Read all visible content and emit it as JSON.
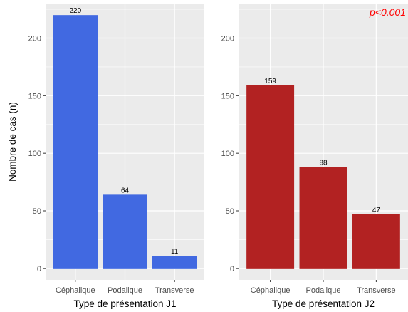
{
  "chart_data": [
    {
      "type": "bar",
      "categories": [
        "Céphalique",
        "Podalique",
        "Transverse"
      ],
      "values": [
        220,
        64,
        11
      ],
      "data_labels": [
        "220",
        "64",
        "11"
      ],
      "xlabel": "Type de présentation J1",
      "ylabel": "Nombre de cas (n)",
      "ylim": [
        -10,
        230
      ],
      "yticks": [
        0,
        50,
        100,
        150,
        200
      ],
      "ytick_labels": [
        "0",
        "50",
        "100",
        "150",
        "200"
      ],
      "bar_color": "#4169E1",
      "panel_bg": "#EBEBEB",
      "grid": true,
      "annotation": ""
    },
    {
      "type": "bar",
      "categories": [
        "Céphalique",
        "Podalique",
        "Transverse"
      ],
      "values": [
        159,
        88,
        47
      ],
      "data_labels": [
        "159",
        "88",
        "47"
      ],
      "xlabel": "Type de présentation J2",
      "ylabel": "",
      "ylim": [
        -10,
        230
      ],
      "yticks": [
        0,
        50,
        100,
        150,
        200
      ],
      "ytick_labels": [
        "0",
        "50",
        "100",
        "150",
        "200"
      ],
      "bar_color": "#B22222",
      "panel_bg": "#EBEBEB",
      "grid": true,
      "annotation": "p<0.001",
      "annotation_color": "#FF0000"
    }
  ]
}
